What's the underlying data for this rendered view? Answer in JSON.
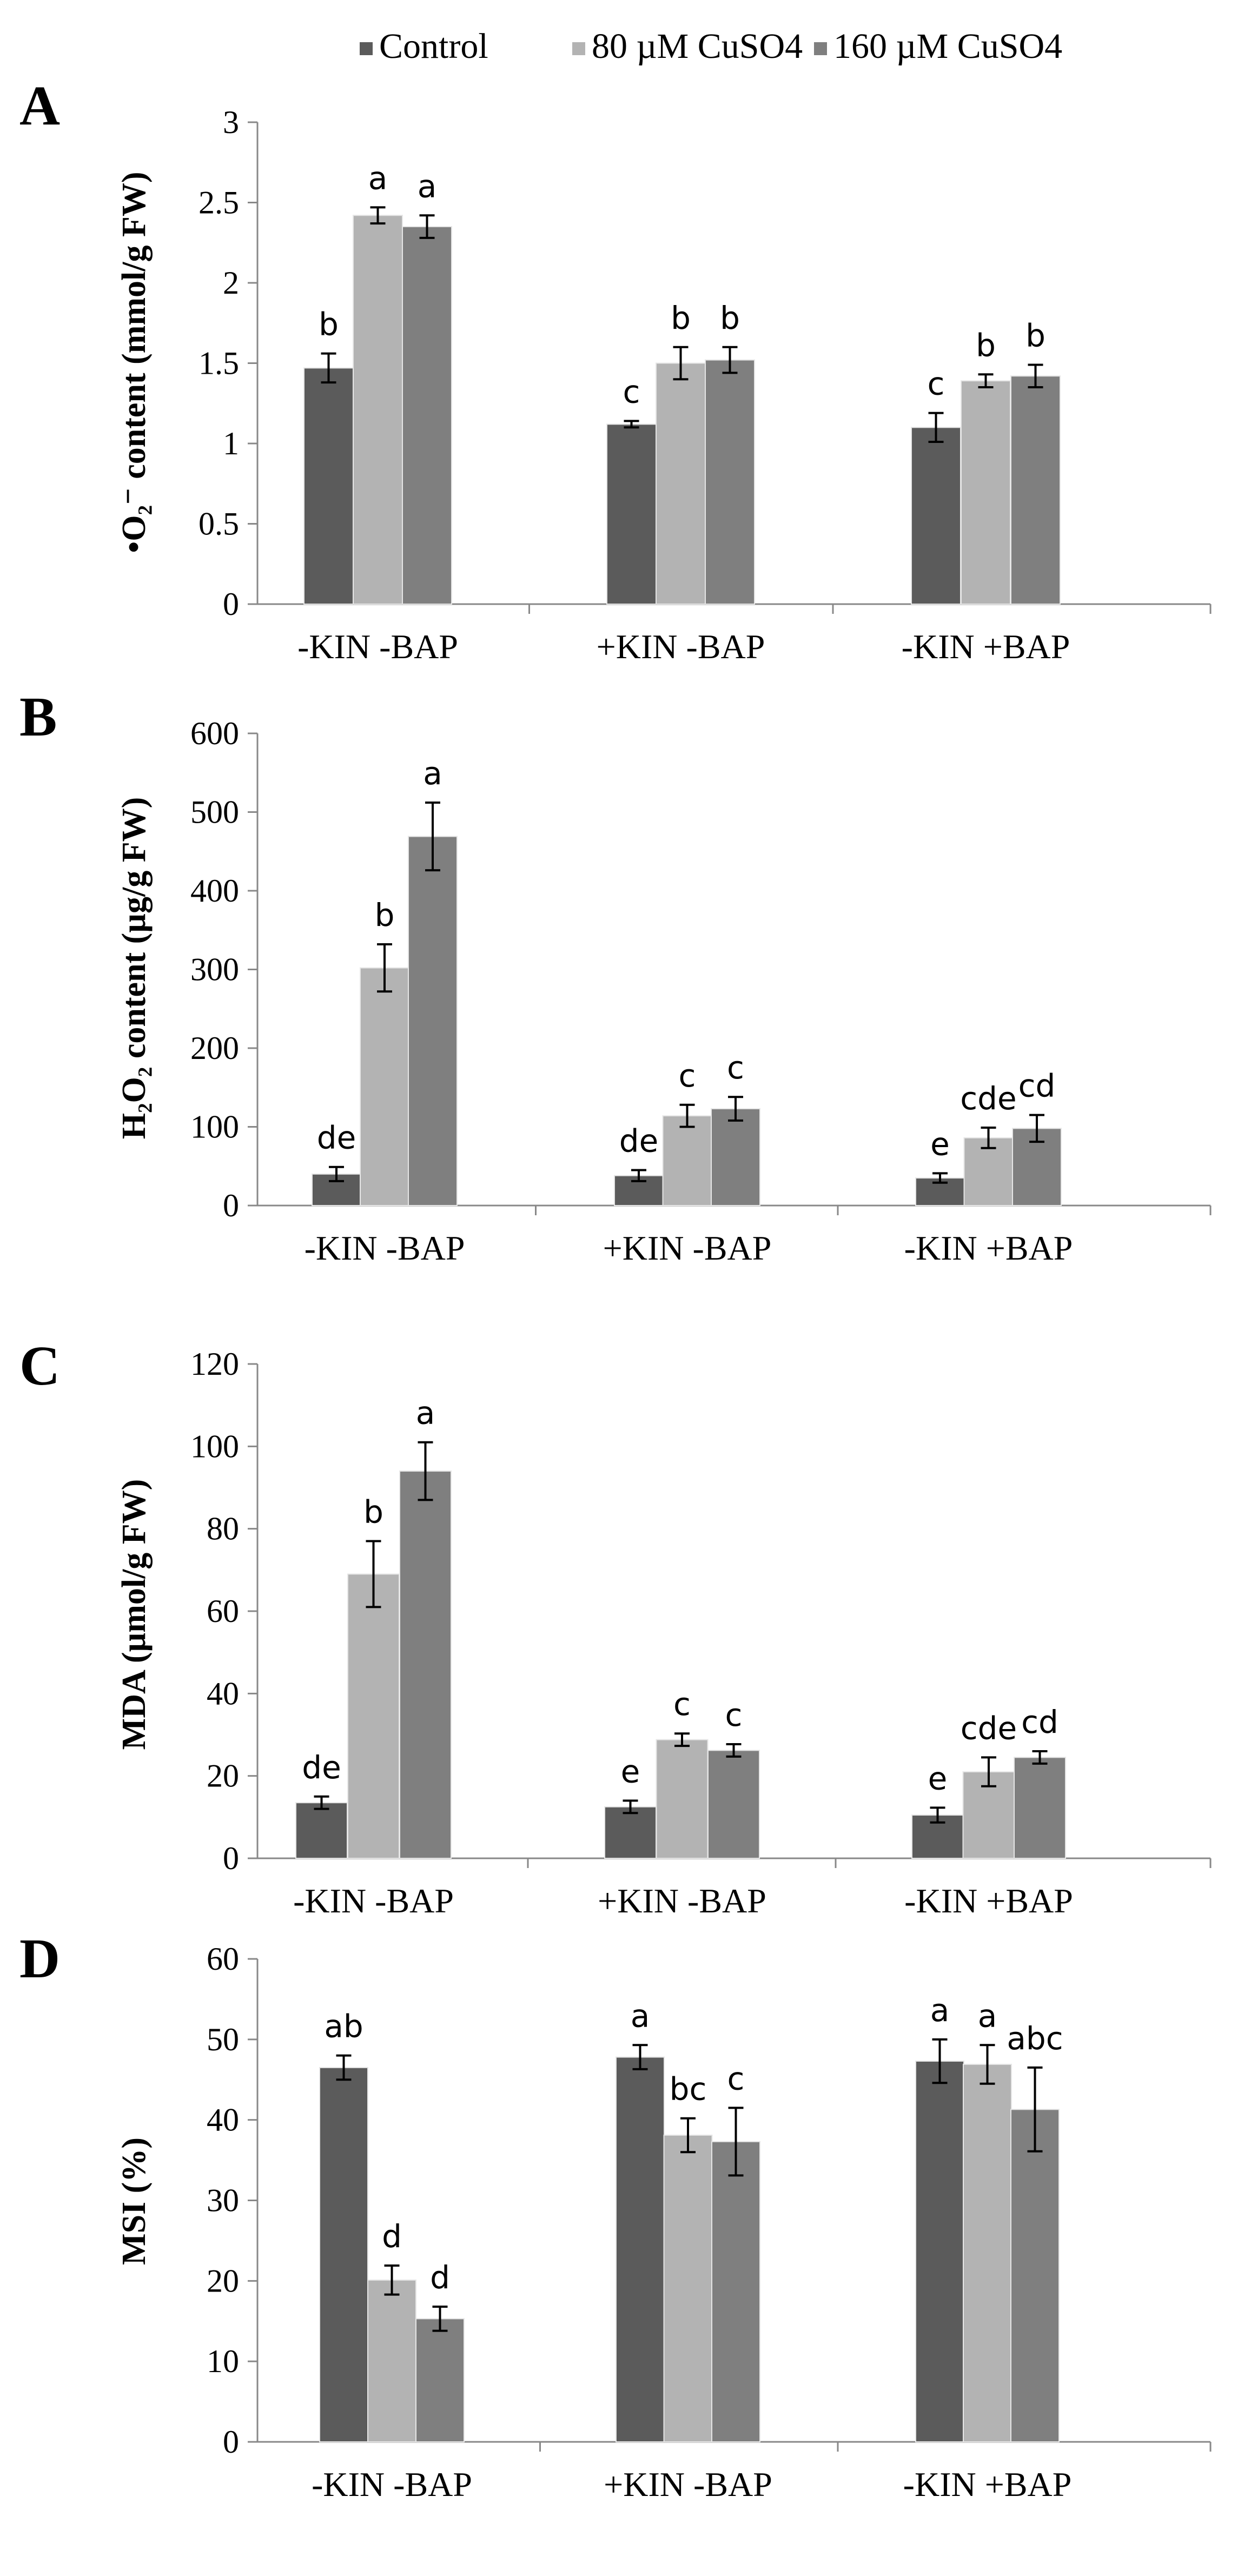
{
  "legend": {
    "items": [
      {
        "label": "Control",
        "color": "#5b5b5b"
      },
      {
        "label": "80 µM CuSO4",
        "color": "#b3b3b3"
      },
      {
        "label": "160 µM CuSO4",
        "color": "#7f7f7f"
      }
    ]
  },
  "chart_data": [
    {
      "panel": "A",
      "type": "bar",
      "ylabel": "•O₂⁻ content (mmol/g FW)",
      "ylim": [
        0,
        3
      ],
      "yticks": [
        "0",
        "0.5",
        "1",
        "1.5",
        "2",
        "2.5",
        "3"
      ],
      "categories": [
        "-KIN -BAP",
        "+KIN -BAP",
        "-KIN +BAP"
      ],
      "series": [
        {
          "name": "Control",
          "values": [
            1.47,
            1.12,
            1.1
          ],
          "errors": [
            0.09,
            0.02,
            0.09
          ],
          "labels": [
            "b",
            "c",
            "c"
          ]
        },
        {
          "name": "80 µM CuSO4",
          "values": [
            2.42,
            1.5,
            1.39
          ],
          "errors": [
            0.05,
            0.1,
            0.04
          ],
          "labels": [
            "a",
            "b",
            "b"
          ]
        },
        {
          "name": "160 µM CuSO4",
          "values": [
            2.35,
            1.52,
            1.42
          ],
          "errors": [
            0.07,
            0.08,
            0.07
          ],
          "labels": [
            "a",
            "b",
            "b"
          ]
        }
      ]
    },
    {
      "panel": "B",
      "type": "bar",
      "ylabel": "H₂O₂ content (µg/g FW)",
      "ylim": [
        0,
        600
      ],
      "yticks": [
        "0",
        "100",
        "200",
        "300",
        "400",
        "500",
        "600"
      ],
      "categories": [
        "-KIN -BAP",
        "+KIN -BAP",
        "-KIN +BAP"
      ],
      "series": [
        {
          "name": "Control",
          "values": [
            40,
            38,
            35
          ],
          "errors": [
            9,
            7,
            6
          ],
          "labels": [
            "de",
            "de",
            "e"
          ]
        },
        {
          "name": "80 µM CuSO4",
          "values": [
            302,
            114,
            86
          ],
          "errors": [
            30,
            14,
            13
          ],
          "labels": [
            "b",
            "c",
            "cde"
          ]
        },
        {
          "name": "160 µM CuSO4",
          "values": [
            469,
            123,
            98
          ],
          "errors": [
            43,
            15,
            17
          ],
          "labels": [
            "a",
            "c",
            "cd"
          ]
        }
      ]
    },
    {
      "panel": "C",
      "type": "bar",
      "ylabel": "MDA (µmol/g FW)",
      "ylim": [
        0,
        120
      ],
      "yticks": [
        "0",
        "20",
        "40",
        "60",
        "80",
        "100",
        "120"
      ],
      "categories": [
        "-KIN -BAP",
        "+KIN -BAP",
        "-KIN +BAP"
      ],
      "series": [
        {
          "name": "Control",
          "values": [
            13.5,
            12.5,
            10.5
          ],
          "errors": [
            1.5,
            1.5,
            1.8
          ],
          "labels": [
            "de",
            "e",
            "e"
          ]
        },
        {
          "name": "80 µM CuSO4",
          "values": [
            69,
            28.8,
            21
          ],
          "errors": [
            8,
            1.5,
            3.5
          ],
          "labels": [
            "b",
            "c",
            "cde"
          ]
        },
        {
          "name": "160 µM CuSO4",
          "values": [
            94,
            26.2,
            24.5
          ],
          "errors": [
            7,
            1.5,
            1.5
          ],
          "labels": [
            "a",
            "c",
            "cd"
          ]
        }
      ]
    },
    {
      "panel": "D",
      "type": "bar",
      "ylabel": "MSI (%)",
      "ylim": [
        0,
        60
      ],
      "yticks": [
        "0",
        "10",
        "20",
        "30",
        "40",
        "50",
        "60"
      ],
      "categories": [
        "-KIN -BAP",
        "+KIN -BAP",
        "-KIN +BAP"
      ],
      "series": [
        {
          "name": "Control",
          "values": [
            46.5,
            47.8,
            47.3
          ],
          "errors": [
            1.5,
            1.5,
            2.7
          ],
          "labels": [
            "ab",
            "a",
            "a"
          ]
        },
        {
          "name": "80 µM CuSO4",
          "values": [
            20.1,
            38.1,
            46.9
          ],
          "errors": [
            1.8,
            2.1,
            2.4
          ],
          "labels": [
            "d",
            "bc",
            "a"
          ]
        },
        {
          "name": "160 µM CuSO4",
          "values": [
            15.3,
            37.3,
            41.3
          ],
          "errors": [
            1.5,
            4.2,
            5.2
          ],
          "labels": [
            "d",
            "c",
            "abc"
          ]
        }
      ]
    }
  ]
}
